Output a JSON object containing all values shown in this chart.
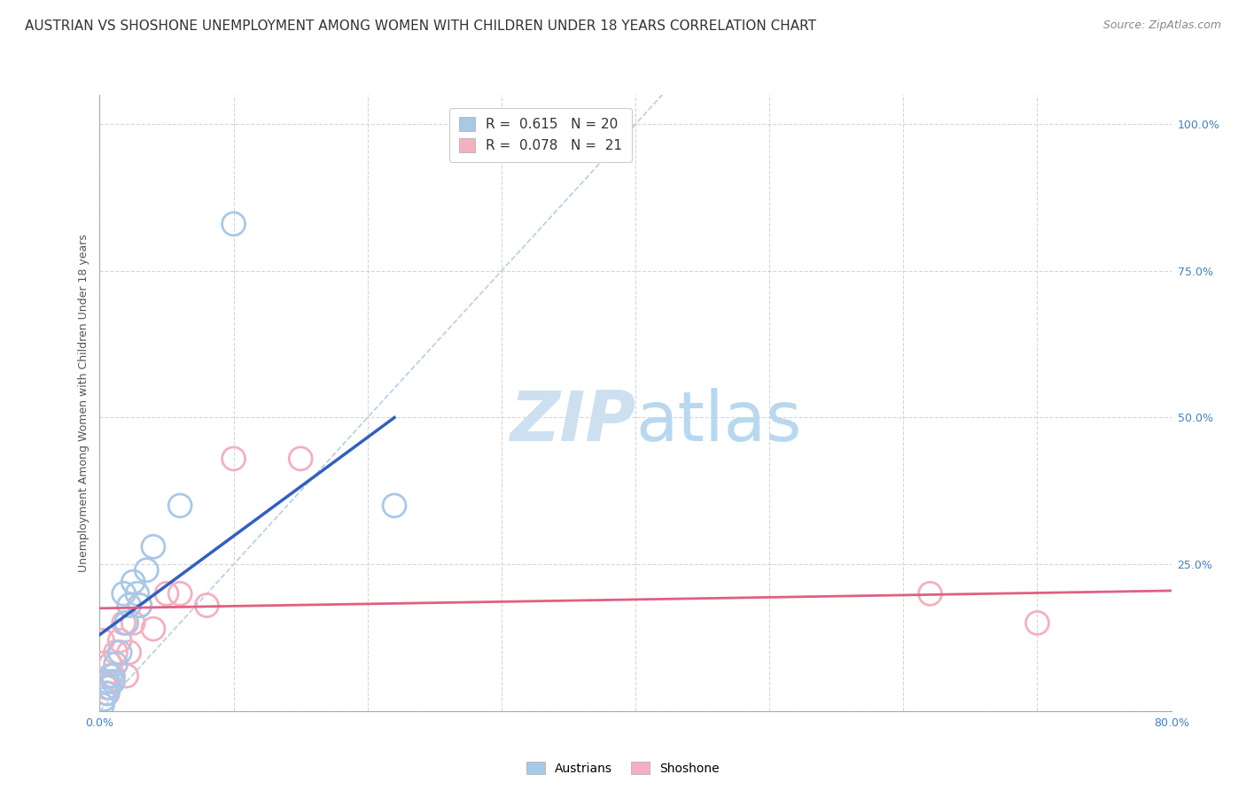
{
  "title": "AUSTRIAN VS SHOSHONE UNEMPLOYMENT AMONG WOMEN WITH CHILDREN UNDER 18 YEARS CORRELATION CHART",
  "source": "Source: ZipAtlas.com",
  "ylabel": "Unemployment Among Women with Children Under 18 years",
  "xlim": [
    0.0,
    0.8
  ],
  "ylim": [
    0.0,
    1.05
  ],
  "xticks": [
    0.0,
    0.1,
    0.2,
    0.3,
    0.4,
    0.5,
    0.6,
    0.7,
    0.8
  ],
  "xtick_labels": [
    "0.0%",
    "",
    "",
    "",
    "",
    "",
    "",
    "",
    "80.0%"
  ],
  "yticks": [
    0.0,
    0.25,
    0.5,
    0.75,
    1.0
  ],
  "ytick_labels": [
    "",
    "25.0%",
    "50.0%",
    "75.0%",
    "100.0%"
  ],
  "austrians_x": [
    0.002,
    0.003,
    0.005,
    0.006,
    0.007,
    0.008,
    0.01,
    0.012,
    0.015,
    0.018,
    0.02,
    0.022,
    0.025,
    0.028,
    0.03,
    0.035,
    0.04,
    0.06,
    0.1,
    0.22
  ],
  "austrians_y": [
    0.01,
    0.02,
    0.03,
    0.05,
    0.04,
    0.06,
    0.05,
    0.08,
    0.1,
    0.2,
    0.15,
    0.18,
    0.22,
    0.2,
    0.18,
    0.24,
    0.28,
    0.35,
    0.83,
    0.35
  ],
  "shoshone_x": [
    0.002,
    0.003,
    0.005,
    0.006,
    0.008,
    0.01,
    0.012,
    0.015,
    0.018,
    0.02,
    0.022,
    0.025,
    0.03,
    0.04,
    0.05,
    0.06,
    0.08,
    0.1,
    0.15,
    0.62,
    0.7
  ],
  "shoshone_y": [
    0.12,
    0.05,
    0.04,
    0.03,
    0.08,
    0.06,
    0.1,
    0.12,
    0.15,
    0.06,
    0.1,
    0.15,
    0.18,
    0.14,
    0.2,
    0.2,
    0.18,
    0.43,
    0.43,
    0.2,
    0.15
  ],
  "austrians_line_x0": 0.0,
  "austrians_line_y0": 0.13,
  "austrians_line_x1": 0.22,
  "austrians_line_y1": 0.5,
  "shoshone_line_x0": 0.0,
  "shoshone_line_y0": 0.175,
  "shoshone_line_x1": 0.8,
  "shoshone_line_y1": 0.205,
  "austrians_R": 0.615,
  "austrians_N": 20,
  "shoshone_R": 0.078,
  "shoshone_N": 21,
  "color_austrians": "#a8c8e8",
  "color_shoshone": "#f4b0c0",
  "line_color_austrians": "#3060c0",
  "line_color_shoshone": "#e06080",
  "diagonal_color": "#b0c8e0",
  "watermark_color": "#d0e8f5",
  "title_fontsize": 11,
  "source_fontsize": 9,
  "label_fontsize": 9,
  "tick_color": "#4080c0",
  "tick_fontsize": 9,
  "legend_fontsize": 11
}
